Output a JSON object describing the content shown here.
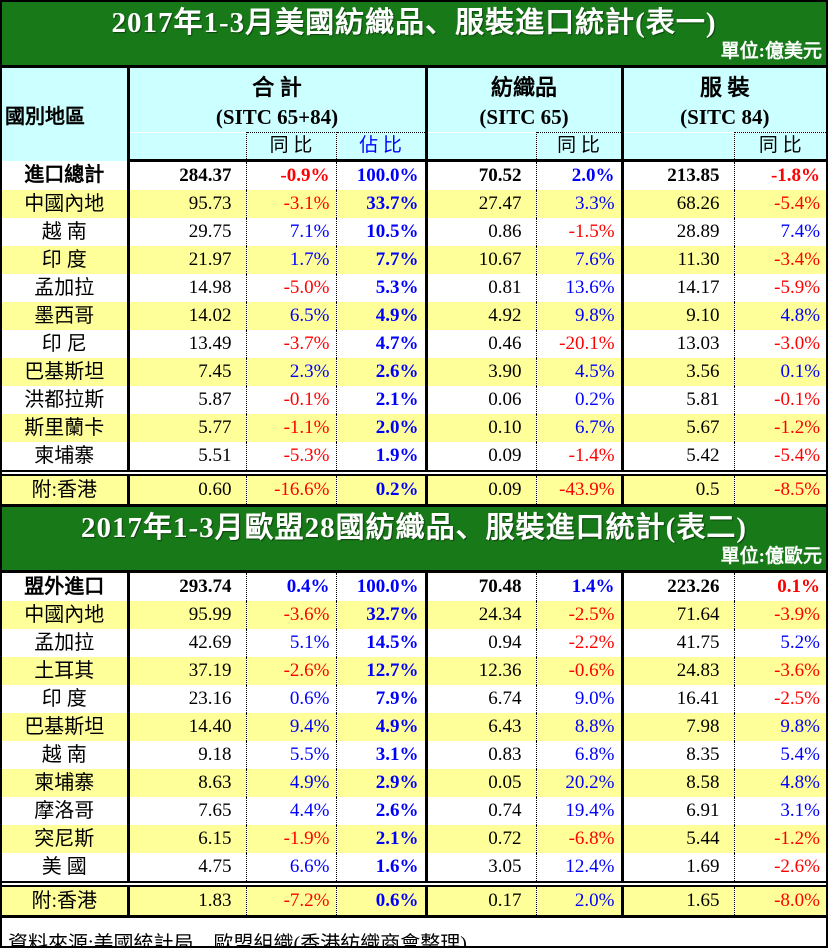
{
  "colors": {
    "title_bar_bg": "#177917",
    "header_bg": "#ccffff",
    "row_alt_bg": "#ffff99",
    "positive_pct": "#0000ff",
    "negative_pct": "#ff0000",
    "share_pct": "#0000ff"
  },
  "footer": {
    "source": "資料來源:美國統計局、歐盟組織(香港紡織商會整理)"
  },
  "tables": [
    {
      "title": "2017年1-3月美國紡織品、服裝進口統計(表一)",
      "unit": "單位:億美元",
      "column_header": {
        "country": "國別地區",
        "yoy": "同 比",
        "share": "佔 比",
        "groups": [
          {
            "label": "合 計",
            "sitc": "(SITC 65+84)"
          },
          {
            "label": "紡織品",
            "sitc": "(SITC 65)"
          },
          {
            "label": "服 裝",
            "sitc": "(SITC 84)"
          }
        ]
      },
      "rows": [
        {
          "name": "進口總計",
          "bold": true,
          "values": [
            "284.37",
            "-0.9%",
            "100.0%",
            "70.52",
            "2.0%",
            "213.85",
            "-1.8%"
          ]
        },
        {
          "name": "中國內地",
          "values": [
            "95.73",
            "-3.1%",
            "33.7%",
            "27.47",
            "3.3%",
            "68.26",
            "-5.4%"
          ]
        },
        {
          "name": "越 南",
          "values": [
            "29.75",
            "7.1%",
            "10.5%",
            "0.86",
            "-1.5%",
            "28.89",
            "7.4%"
          ]
        },
        {
          "name": "印 度",
          "values": [
            "21.97",
            "1.7%",
            "7.7%",
            "10.67",
            "7.6%",
            "11.30",
            "-3.4%"
          ]
        },
        {
          "name": "孟加拉",
          "values": [
            "14.98",
            "-5.0%",
            "5.3%",
            "0.81",
            "13.6%",
            "14.17",
            "-5.9%"
          ]
        },
        {
          "name": "墨西哥",
          "values": [
            "14.02",
            "6.5%",
            "4.9%",
            "4.92",
            "9.8%",
            "9.10",
            "4.8%"
          ]
        },
        {
          "name": "印 尼",
          "values": [
            "13.49",
            "-3.7%",
            "4.7%",
            "0.46",
            "-20.1%",
            "13.03",
            "-3.0%"
          ]
        },
        {
          "name": "巴基斯坦",
          "values": [
            "7.45",
            "2.3%",
            "2.6%",
            "3.90",
            "4.5%",
            "3.56",
            "0.1%"
          ]
        },
        {
          "name": "洪都拉斯",
          "values": [
            "5.87",
            "-0.1%",
            "2.1%",
            "0.06",
            "0.2%",
            "5.81",
            "-0.1%"
          ]
        },
        {
          "name": "斯里蘭卡",
          "values": [
            "5.77",
            "-1.1%",
            "2.0%",
            "0.10",
            "6.7%",
            "5.67",
            "-1.2%"
          ]
        },
        {
          "name": "柬埔寨",
          "values": [
            "5.51",
            "-5.3%",
            "1.9%",
            "0.09",
            "-1.4%",
            "5.42",
            "-5.4%"
          ]
        },
        {
          "name": "附:香港",
          "values": [
            "0.60",
            "-16.6%",
            "0.2%",
            "0.09",
            "-43.9%",
            "0.5",
            "-8.5%"
          ]
        }
      ]
    },
    {
      "title": "2017年1-3月歐盟28國紡織品、服裝進口統計(表二)",
      "unit": "單位:億歐元",
      "rows": [
        {
          "name": "盟外進口",
          "bold": true,
          "values": [
            "293.74",
            "0.4%",
            "100.0%",
            "70.48",
            "1.4%",
            "223.26",
            "0.1%"
          ],
          "color_overrides": {
            "6": "neg"
          }
        },
        {
          "name": "中國內地",
          "values": [
            "95.99",
            "-3.6%",
            "32.7%",
            "24.34",
            "-2.5%",
            "71.64",
            "-3.9%"
          ]
        },
        {
          "name": "孟加拉",
          "values": [
            "42.69",
            "5.1%",
            "14.5%",
            "0.94",
            "-2.2%",
            "41.75",
            "5.2%"
          ]
        },
        {
          "name": "土耳其",
          "values": [
            "37.19",
            "-2.6%",
            "12.7%",
            "12.36",
            "-0.6%",
            "24.83",
            "-3.6%"
          ]
        },
        {
          "name": "印 度",
          "values": [
            "23.16",
            "0.6%",
            "7.9%",
            "6.74",
            "9.0%",
            "16.41",
            "-2.5%"
          ]
        },
        {
          "name": "巴基斯坦",
          "values": [
            "14.40",
            "9.4%",
            "4.9%",
            "6.43",
            "8.8%",
            "7.98",
            "9.8%"
          ]
        },
        {
          "name": "越 南",
          "values": [
            "9.18",
            "5.5%",
            "3.1%",
            "0.83",
            "6.8%",
            "8.35",
            "5.4%"
          ]
        },
        {
          "name": "柬埔寨",
          "values": [
            "8.63",
            "4.9%",
            "2.9%",
            "0.05",
            "20.2%",
            "8.58",
            "4.8%"
          ]
        },
        {
          "name": "摩洛哥",
          "values": [
            "7.65",
            "4.4%",
            "2.6%",
            "0.74",
            "19.4%",
            "6.91",
            "3.1%"
          ]
        },
        {
          "name": "突尼斯",
          "values": [
            "6.15",
            "-1.9%",
            "2.1%",
            "0.72",
            "-6.8%",
            "5.44",
            "-1.2%"
          ]
        },
        {
          "name": "美 國",
          "values": [
            "4.75",
            "6.6%",
            "1.6%",
            "3.05",
            "12.4%",
            "1.69",
            "-2.6%"
          ]
        },
        {
          "name": "附:香港",
          "values": [
            "1.83",
            "-7.2%",
            "0.6%",
            "0.17",
            "2.0%",
            "1.65",
            "-8.0%"
          ]
        }
      ]
    }
  ]
}
